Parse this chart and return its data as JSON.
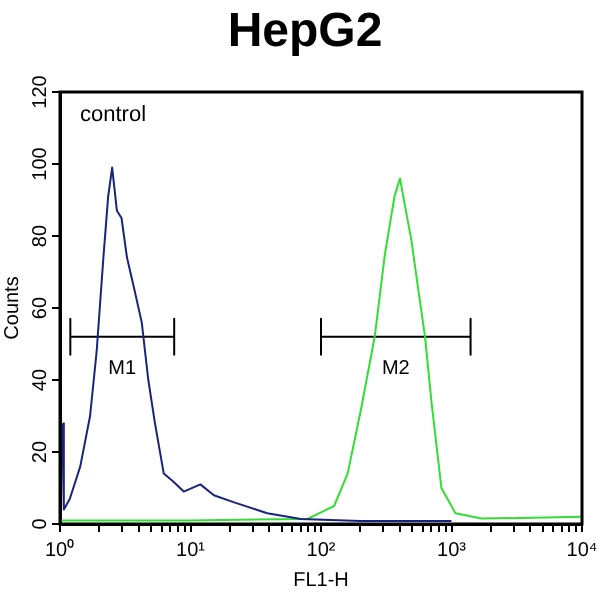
{
  "chart_data": {
    "type": "line",
    "title": "HepG2",
    "xlabel": "FL1-H",
    "ylabel": "Counts",
    "annotations": [
      "control"
    ],
    "log": "x",
    "grid": false,
    "legend": false,
    "marker": "none",
    "line_style": "solid",
    "xlim": [
      1,
      10000
    ],
    "xticks": [
      {
        "value": 1,
        "label": "10⁰"
      },
      {
        "value": 2,
        "label": null
      },
      {
        "value": 3,
        "label": null
      },
      {
        "value": 4,
        "label": null
      },
      {
        "value": 5,
        "label": null
      },
      {
        "value": 6,
        "label": null
      },
      {
        "value": 7,
        "label": null
      },
      {
        "value": 8,
        "label": null
      },
      {
        "value": 9,
        "label": null
      },
      {
        "value": 10,
        "label": "10¹"
      },
      {
        "value": 20,
        "label": null
      },
      {
        "value": 30,
        "label": null
      },
      {
        "value": 40,
        "label": null
      },
      {
        "value": 50,
        "label": null
      },
      {
        "value": 60,
        "label": null
      },
      {
        "value": 70,
        "label": null
      },
      {
        "value": 80,
        "label": null
      },
      {
        "value": 90,
        "label": null
      },
      {
        "value": 100,
        "label": "10²"
      },
      {
        "value": 200,
        "label": null
      },
      {
        "value": 300,
        "label": null
      },
      {
        "value": 400,
        "label": null
      },
      {
        "value": 500,
        "label": null
      },
      {
        "value": 600,
        "label": null
      },
      {
        "value": 700,
        "label": null
      },
      {
        "value": 800,
        "label": null
      },
      {
        "value": 900,
        "label": null
      },
      {
        "value": 1000,
        "label": "10³"
      },
      {
        "value": 2000,
        "label": null
      },
      {
        "value": 3000,
        "label": null
      },
      {
        "value": 4000,
        "label": null
      },
      {
        "value": 5000,
        "label": null
      },
      {
        "value": 6000,
        "label": null
      },
      {
        "value": 7000,
        "label": null
      },
      {
        "value": 8000,
        "label": null
      },
      {
        "value": 9000,
        "label": null
      },
      {
        "value": 10000,
        "label": "10⁴"
      }
    ],
    "ylim": [
      0,
      120
    ],
    "yticks": [
      0,
      20,
      40,
      60,
      80,
      100,
      120
    ],
    "series": [
      {
        "color": "#1a237e",
        "x": [
          1.04,
          1.07,
          1.19,
          1.43,
          1.7,
          1.91,
          2.15,
          2.34,
          2.51,
          2.73,
          2.96,
          3.26,
          3.67,
          4.23,
          4.75,
          5.34,
          6.24,
          7.26,
          8.88,
          11.9,
          15.1,
          21.6,
          38.8,
          70,
          200,
          1000
        ],
        "values": [
          28,
          4,
          7,
          16,
          30,
          48,
          74,
          91,
          99,
          87,
          85,
          74,
          66,
          56,
          40,
          28,
          14,
          12,
          9,
          11,
          8,
          6,
          3,
          1.4,
          0.8,
          0.8
        ]
      },
      {
        "color": "#33dd33",
        "x": [
          1,
          10,
          79,
          126,
          160,
          203,
          258,
          309,
          366,
          403,
          437,
          492,
          552,
          627,
          702,
          837,
          1072,
          1700,
          10000
        ],
        "values": [
          1,
          1,
          1.4,
          5,
          14,
          32,
          52,
          75,
          91,
          96,
          89,
          79,
          66,
          52,
          34,
          10,
          3,
          1.5,
          2
        ]
      },
      {
        "name": "M1",
        "color": "#000000",
        "x": [
          1.2,
          1.2,
          1.2,
          7.5,
          7.5,
          7.5
        ],
        "values": [
          57,
          47,
          52,
          52,
          57,
          47
        ]
      },
      {
        "name": "M2",
        "color": "#000000",
        "x": [
          100,
          100,
          100,
          1400,
          1400,
          1400
        ],
        "values": [
          57,
          47,
          52,
          52,
          57,
          47
        ]
      }
    ]
  }
}
